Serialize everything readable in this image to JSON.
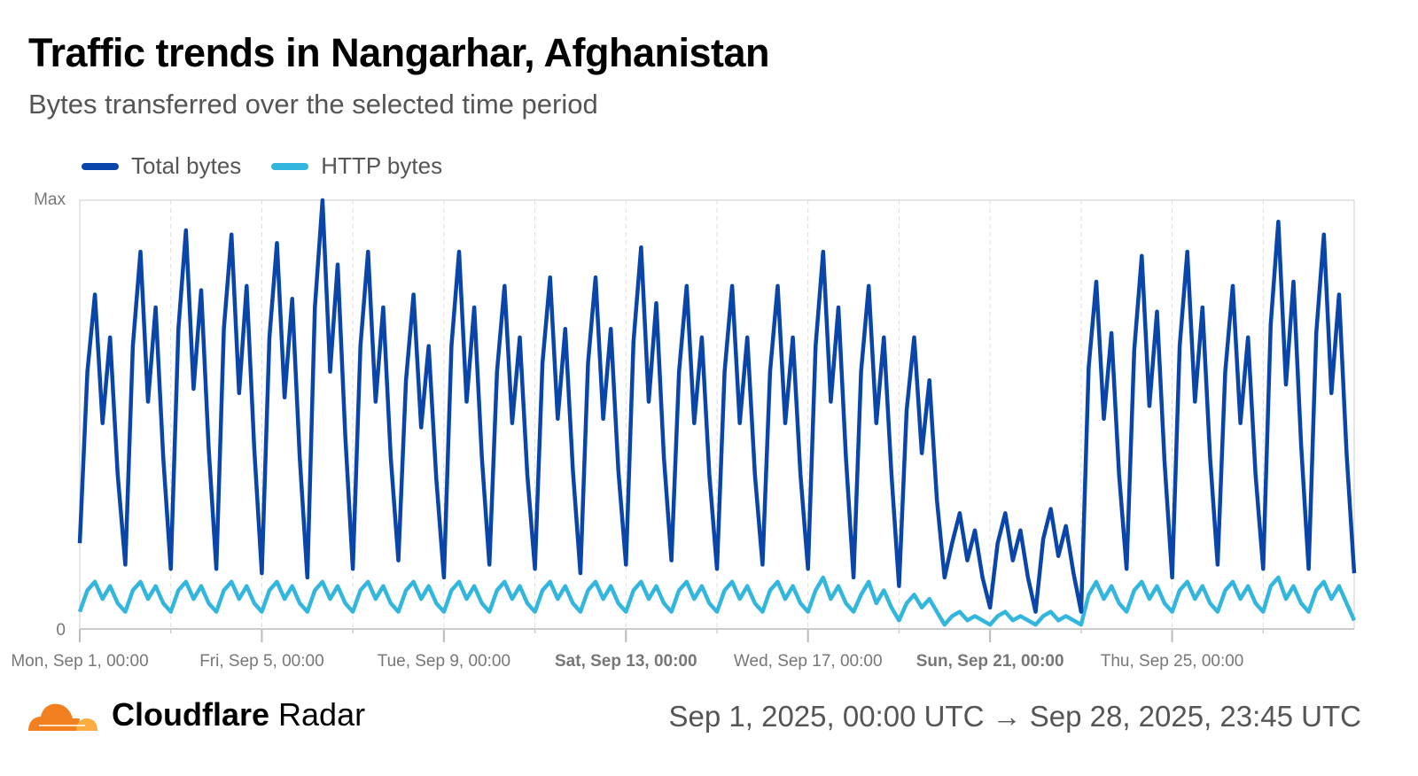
{
  "title": "Traffic trends in Nangarhar, Afghanistan",
  "subtitle": "Bytes transferred over the selected time period",
  "footer": {
    "brand_bold": "Cloudflare",
    "brand_light": "Radar",
    "range": "Sep 1, 2025, 00:00 UTC → Sep 28, 2025, 23:45 UTC"
  },
  "colors": {
    "total": "#0a46aa",
    "http": "#33b6dd",
    "logo_dark": "#f38020",
    "logo_light": "#fbad41"
  },
  "chart_data": {
    "type": "line",
    "title": "Traffic trends in Nangarhar, Afghanistan",
    "ylabel": "",
    "y_ticks": [
      "0",
      "Max"
    ],
    "ylim": [
      0,
      100
    ],
    "x_unit": "days since Sep 1 00:00 UTC",
    "xlim": [
      0,
      28
    ],
    "sample_interval_hours": 4,
    "x_ticks": [
      {
        "day": 0,
        "label": "Mon, Sep 1, 00:00",
        "bold": false
      },
      {
        "day": 4,
        "label": "Fri, Sep 5, 00:00",
        "bold": false
      },
      {
        "day": 8,
        "label": "Tue, Sep 9, 00:00",
        "bold": false
      },
      {
        "day": 12,
        "label": "Sat, Sep 13, 00:00",
        "bold": true
      },
      {
        "day": 16,
        "label": "Wed, Sep 17, 00:00",
        "bold": false
      },
      {
        "day": 20,
        "label": "Sun, Sep 21, 00:00",
        "bold": true
      },
      {
        "day": 24,
        "label": "Thu, Sep 25, 00:00",
        "bold": false
      }
    ],
    "grid": "vertical dashed every 2 days",
    "legend_position": "top-left",
    "series": [
      {
        "name": "Total bytes",
        "values": [
          20,
          60,
          78,
          48,
          68,
          36,
          15,
          66,
          88,
          53,
          75,
          40,
          14,
          70,
          93,
          56,
          79,
          42,
          14,
          70,
          92,
          55,
          80,
          42,
          13,
          68,
          90,
          54,
          77,
          40,
          12,
          75,
          100,
          60,
          85,
          45,
          14,
          66,
          88,
          53,
          75,
          40,
          16,
          58,
          78,
          47,
          66,
          35,
          12,
          66,
          88,
          53,
          75,
          40,
          15,
          60,
          80,
          48,
          68,
          36,
          14,
          62,
          82,
          49,
          70,
          37,
          13,
          62,
          82,
          49,
          70,
          37,
          15,
          67,
          89,
          53,
          76,
          40,
          16,
          60,
          80,
          48,
          68,
          36,
          14,
          60,
          80,
          48,
          68,
          36,
          15,
          60,
          80,
          48,
          68,
          36,
          14,
          66,
          88,
          53,
          75,
          40,
          12,
          60,
          80,
          48,
          68,
          36,
          10,
          51,
          68,
          41,
          58,
          30,
          12,
          20,
          27,
          16,
          23,
          12,
          5,
          20,
          27,
          16,
          23,
          12,
          4,
          21,
          28,
          17,
          24,
          13,
          4,
          61,
          81,
          49,
          69,
          36,
          14,
          65,
          87,
          52,
          74,
          39,
          12,
          66,
          88,
          53,
          75,
          40,
          15,
          60,
          80,
          48,
          68,
          36,
          14,
          71,
          95,
          57,
          81,
          43,
          14,
          69,
          92,
          55,
          78,
          41,
          13
        ]
      },
      {
        "name": "HTTP bytes",
        "values": [
          4,
          9,
          11,
          7,
          10,
          6,
          4,
          9,
          11,
          7,
          10,
          6,
          4,
          9,
          11,
          7,
          10,
          6,
          4,
          9,
          11,
          7,
          10,
          6,
          4,
          9,
          11,
          7,
          10,
          6,
          4,
          9,
          11,
          7,
          10,
          6,
          4,
          9,
          11,
          7,
          10,
          6,
          4,
          9,
          11,
          7,
          10,
          6,
          4,
          9,
          11,
          7,
          10,
          6,
          4,
          9,
          11,
          7,
          10,
          6,
          4,
          9,
          11,
          7,
          10,
          6,
          4,
          9,
          11,
          7,
          10,
          6,
          4,
          9,
          11,
          7,
          10,
          6,
          4,
          9,
          11,
          7,
          10,
          6,
          4,
          9,
          11,
          7,
          10,
          6,
          4,
          9,
          11,
          7,
          10,
          6,
          4,
          9,
          12,
          7,
          10,
          6,
          4,
          8,
          11,
          6,
          9,
          5,
          2,
          6,
          8,
          5,
          7,
          4,
          1,
          3,
          4,
          2,
          3,
          2,
          1,
          3,
          4,
          2,
          3,
          2,
          1,
          3,
          4,
          2,
          3,
          2,
          1,
          8,
          11,
          7,
          10,
          6,
          4,
          9,
          11,
          7,
          10,
          6,
          4,
          9,
          11,
          7,
          10,
          6,
          4,
          9,
          11,
          7,
          10,
          6,
          4,
          10,
          12,
          7,
          10,
          6,
          4,
          9,
          11,
          7,
          10,
          6,
          2
        ]
      }
    ]
  }
}
